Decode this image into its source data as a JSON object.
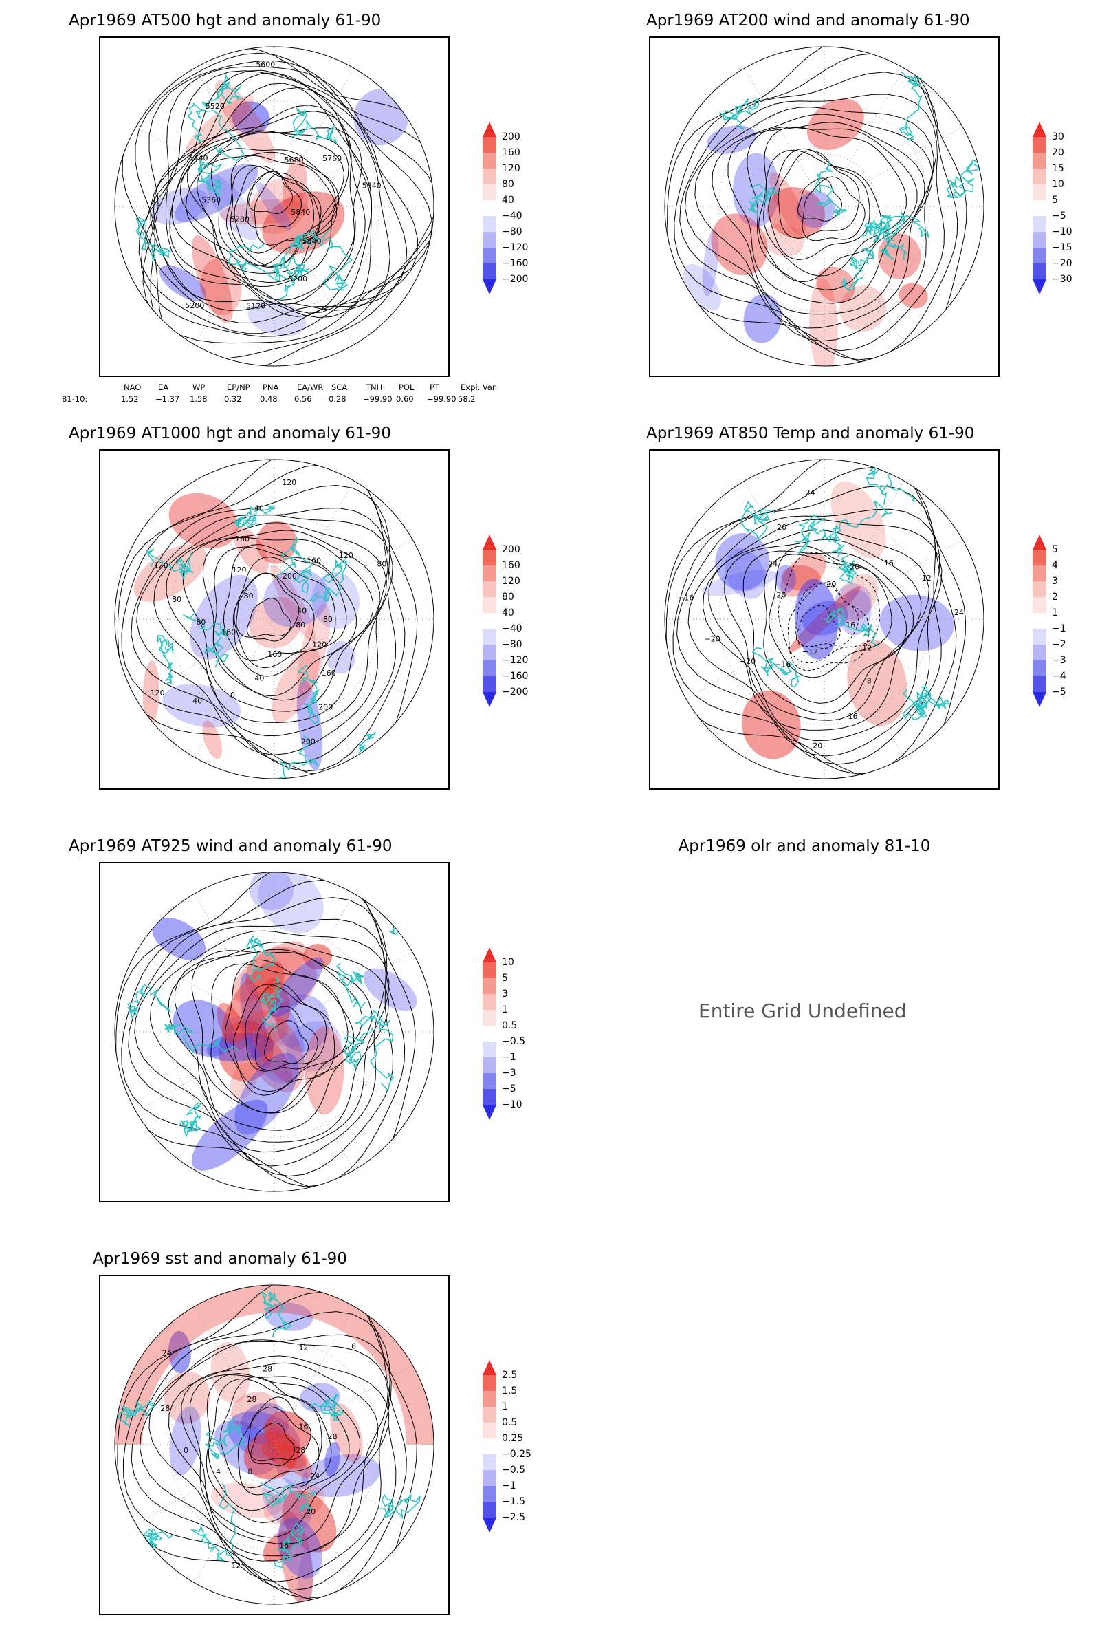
{
  "panels": [
    {
      "title": "Apr1969 AT500 hgt and anomaly 61-90",
      "colorbar": [
        "200",
        "160",
        "120",
        "80",
        "40",
        "−40",
        "−80",
        "−120",
        "−160",
        "−200"
      ],
      "contour_labels": [
        "5840",
        "5840",
        "5200",
        "5120",
        "5200",
        "5280",
        "5360",
        "5440",
        "5520",
        "5600",
        "5680",
        "5760",
        "5840"
      ]
    },
    {
      "title": "Apr1969 AT200 wind and anomaly 61-90",
      "colorbar": [
        "30",
        "20",
        "15",
        "10",
        "5",
        "−5",
        "−10",
        "−15",
        "−20",
        "−30"
      ],
      "contour_labels": []
    },
    {
      "title": "Apr1969 AT1000 hgt and anomaly 61-90",
      "colorbar": [
        "200",
        "160",
        "120",
        "80",
        "40",
        "−40",
        "−80",
        "−120",
        "−160",
        "−200"
      ],
      "contour_labels": [
        "80",
        "120",
        "160",
        "200",
        "200",
        "160",
        "40",
        "0",
        "40",
        "120",
        "160",
        "80",
        "80",
        "120",
        "80",
        "120",
        "160",
        "40",
        "120",
        "200",
        "160",
        "120",
        "80",
        "40",
        "80"
      ]
    },
    {
      "title": "Apr1969 AT850 Temp and anomaly 61-90",
      "colorbar": [
        "5",
        "4",
        "3",
        "2",
        "1",
        "−1",
        "−2",
        "−3",
        "−4",
        "−5"
      ],
      "contour_labels": [
        "16",
        "12",
        "8",
        "16",
        "20",
        "−12",
        "−16",
        "−20",
        "−20",
        "−16",
        "20",
        "24",
        "20",
        "24",
        "20",
        "20",
        "16",
        "12",
        "24"
      ]
    },
    {
      "title": "Apr1969 AT925 wind and anomaly 61-90",
      "colorbar": [
        "10",
        "5",
        "3",
        "1",
        "0.5",
        "−0.5",
        "−1",
        "−3",
        "−5",
        "−10"
      ],
      "contour_labels": []
    },
    {
      "title": "Apr1969 olr and anomaly 81-10",
      "message": "Entire Grid Undefined"
    },
    {
      "title": "Apr1969 sst and anomaly 61-90",
      "colorbar": [
        "2.5",
        "1.5",
        "1",
        "0.5",
        "0.25",
        "−0.25",
        "−0.5",
        "−1",
        "−1.5",
        "−2.5"
      ],
      "contour_labels": [
        "28",
        "24",
        "20",
        "16",
        "12",
        "8",
        "4",
        "0",
        "28",
        "24",
        "28",
        "28",
        "12",
        "8",
        "16",
        "28"
      ]
    }
  ],
  "indices": {
    "headers": [
      "NAO",
      "EA",
      "WP",
      "EP/NP",
      "PNA",
      "EA/WR",
      "SCA",
      "TNH",
      "POL",
      "PT",
      "Expl. Var."
    ],
    "row_label": "81-10:",
    "values": [
      "1.52",
      "−1.37",
      "1.58",
      "0.32",
      "0.48",
      "0.56",
      "0.28",
      "−99.90",
      "0.60",
      "−99.90",
      "58.2"
    ]
  },
  "colors": {
    "frame": "#000000",
    "coast": "#2ec4c4",
    "contour": "#000000",
    "pos": "#e8302b",
    "neg": "#3d3df0",
    "text_grey": "#555555"
  }
}
